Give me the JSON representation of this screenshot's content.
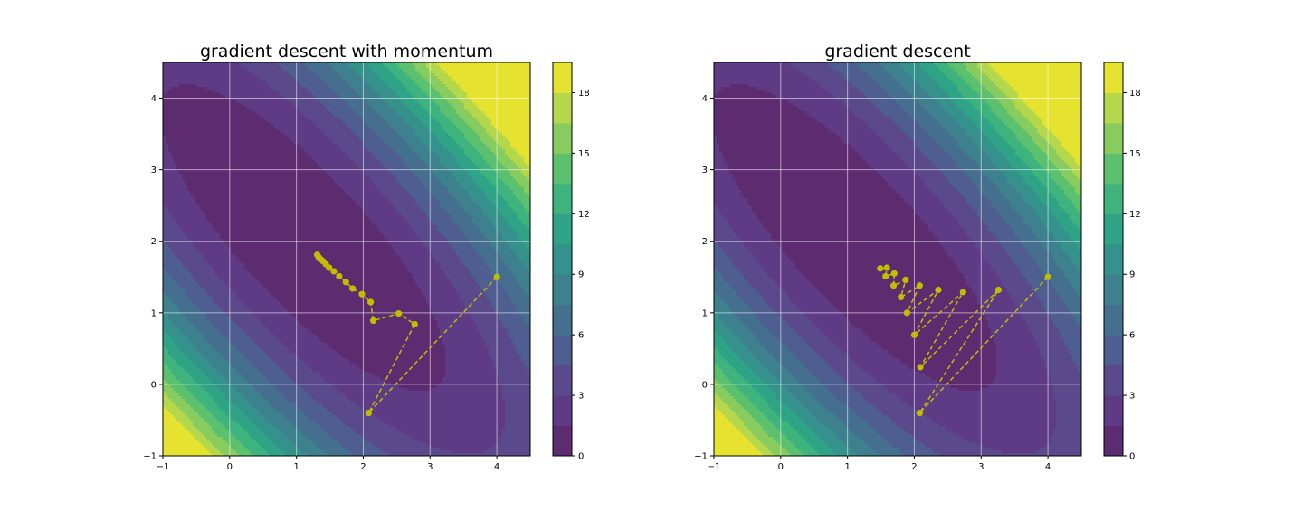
{
  "chart_data": [
    {
      "type": "contour",
      "title": "gradient descent with momentum",
      "xlim": [
        -1,
        4.5
      ],
      "ylim": [
        -1,
        4.5
      ],
      "xticks": [
        "−1",
        "0",
        "1",
        "2",
        "3",
        "4"
      ],
      "yticks": [
        "−1",
        "0",
        "1",
        "2",
        "3",
        "4"
      ],
      "grid": true,
      "colorbar": {
        "min": 0,
        "max": 19.5,
        "ticks": [
          "0",
          "3",
          "6",
          "9",
          "12",
          "15",
          "18"
        ]
      },
      "path": {
        "color": "#bfbf00",
        "style": "dashed",
        "marker": "circle",
        "points": [
          [
            4.0,
            1.5
          ],
          [
            2.08,
            -0.4
          ],
          [
            2.77,
            0.84
          ],
          [
            2.53,
            0.99
          ],
          [
            2.15,
            0.89
          ],
          [
            2.11,
            1.15
          ],
          [
            1.98,
            1.26
          ],
          [
            1.84,
            1.34
          ],
          [
            1.74,
            1.43
          ],
          [
            1.64,
            1.51
          ],
          [
            1.56,
            1.58
          ],
          [
            1.49,
            1.63
          ],
          [
            1.44,
            1.68
          ],
          [
            1.4,
            1.72
          ],
          [
            1.36,
            1.75
          ],
          [
            1.33,
            1.78
          ],
          [
            1.31,
            1.81
          ]
        ]
      }
    },
    {
      "type": "contour",
      "title": "gradient descent",
      "xlim": [
        -1,
        4.5
      ],
      "ylim": [
        -1,
        4.5
      ],
      "xticks": [
        "−1",
        "0",
        "1",
        "2",
        "3",
        "4"
      ],
      "yticks": [
        "−1",
        "0",
        "1",
        "2",
        "3",
        "4"
      ],
      "grid": true,
      "colorbar": {
        "min": 0,
        "max": 19.5,
        "ticks": [
          "0",
          "3",
          "6",
          "9",
          "12",
          "15",
          "18"
        ]
      },
      "path": {
        "color": "#bfbf00",
        "style": "dashed",
        "marker": "circle",
        "points": [
          [
            4.0,
            1.5
          ],
          [
            2.08,
            -0.4
          ],
          [
            3.26,
            1.32
          ],
          [
            2.09,
            0.24
          ],
          [
            2.73,
            1.29
          ],
          [
            2.0,
            0.69
          ],
          [
            2.36,
            1.32
          ],
          [
            1.89,
            1.0
          ],
          [
            2.08,
            1.38
          ],
          [
            1.8,
            1.22
          ],
          [
            1.87,
            1.46
          ],
          [
            1.69,
            1.38
          ],
          [
            1.7,
            1.55
          ],
          [
            1.57,
            1.51
          ],
          [
            1.59,
            1.63
          ],
          [
            1.49,
            1.62
          ]
        ]
      }
    }
  ]
}
